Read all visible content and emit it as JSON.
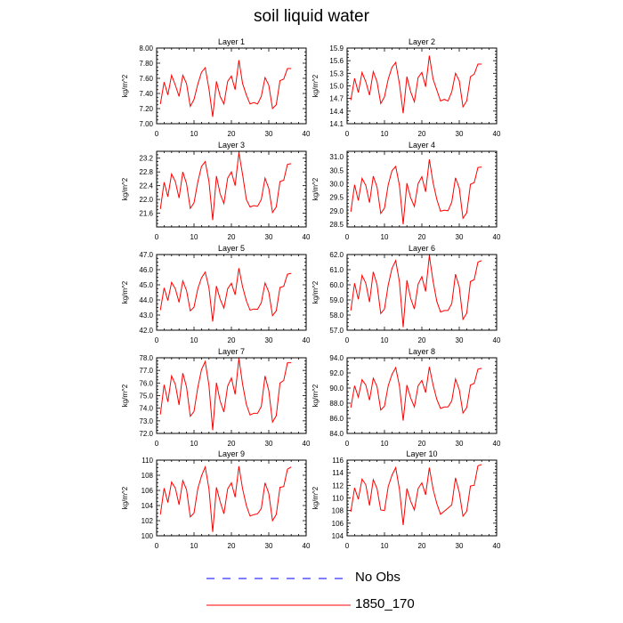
{
  "title": "soil liquid water",
  "ylabel": "kg/m^2",
  "series_color": "#ff0000",
  "obs_color": "#0000ff",
  "legend": {
    "no_obs": "No Obs",
    "model": "1850_170"
  },
  "chart_data": [
    {
      "type": "line",
      "title": "Layer 1",
      "ylabel": "kg/m^2",
      "xlim": [
        0,
        40
      ],
      "xticks": [
        0,
        10,
        20,
        30,
        40
      ],
      "ylim": [
        7.0,
        8.0
      ],
      "yticks": [
        7.0,
        7.2,
        7.4,
        7.6,
        7.8,
        8.0
      ],
      "yticklabels": [
        "7.00",
        "7.20",
        "7.40",
        "7.60",
        "7.80",
        "8.00"
      ],
      "series": [
        {
          "name": "1850_170",
          "x": [
            1,
            2,
            3,
            4,
            5,
            6,
            7,
            8,
            9,
            10,
            11,
            12,
            13,
            14,
            15,
            16,
            17,
            18,
            19,
            20,
            21,
            22,
            23,
            24,
            25,
            26,
            27,
            28,
            29,
            30,
            31,
            32,
            33,
            34,
            35,
            36
          ],
          "values": [
            7.26,
            7.55,
            7.38,
            7.64,
            7.51,
            7.36,
            7.64,
            7.53,
            7.23,
            7.32,
            7.52,
            7.68,
            7.74,
            7.46,
            7.09,
            7.56,
            7.36,
            7.26,
            7.56,
            7.63,
            7.45,
            7.84,
            7.53,
            7.38,
            7.26,
            7.28,
            7.26,
            7.36,
            7.61,
            7.51,
            7.2,
            7.25,
            7.57,
            7.59,
            7.73,
            7.73
          ]
        }
      ]
    },
    {
      "type": "line",
      "title": "Layer 2",
      "ylabel": "kg/m^2",
      "xlim": [
        0,
        40
      ],
      "xticks": [
        0,
        10,
        20,
        30,
        40
      ],
      "ylim": [
        14.1,
        15.9
      ],
      "yticks": [
        14.1,
        14.4,
        14.7,
        15.0,
        15.3,
        15.6,
        15.9
      ],
      "yticklabels": [
        "14.1",
        "14.4",
        "14.7",
        "15.0",
        "15.3",
        "15.6",
        "15.9"
      ],
      "series": [
        {
          "name": "1850_170",
          "x": [
            1,
            2,
            3,
            4,
            5,
            6,
            7,
            8,
            9,
            10,
            11,
            12,
            13,
            14,
            15,
            16,
            17,
            18,
            19,
            20,
            21,
            22,
            23,
            24,
            25,
            26,
            27,
            28,
            29,
            30,
            31,
            32,
            33,
            34,
            35,
            36
          ],
          "values": [
            14.66,
            15.18,
            14.84,
            15.32,
            15.1,
            14.78,
            15.34,
            15.1,
            14.58,
            14.74,
            15.16,
            15.44,
            15.56,
            15.05,
            14.35,
            15.22,
            14.86,
            14.62,
            15.2,
            15.32,
            14.98,
            15.72,
            15.16,
            14.9,
            14.64,
            14.68,
            14.64,
            14.86,
            15.3,
            15.12,
            14.5,
            14.64,
            15.22,
            15.28,
            15.52,
            15.52
          ]
        }
      ]
    },
    {
      "type": "line",
      "title": "Layer 3",
      "ylabel": "kg/m^2",
      "xlim": [
        0,
        40
      ],
      "xticks": [
        0,
        10,
        20,
        30,
        40
      ],
      "ylim": [
        21.2,
        23.4
      ],
      "yticks": [
        21.6,
        22.0,
        22.4,
        22.8,
        23.2
      ],
      "yticklabels": [
        "21.6",
        "22.0",
        "22.4",
        "22.8",
        "23.2"
      ],
      "series": [
        {
          "name": "1850_170",
          "x": [
            1,
            2,
            3,
            4,
            5,
            6,
            7,
            8,
            9,
            10,
            11,
            12,
            13,
            14,
            15,
            16,
            17,
            18,
            19,
            20,
            21,
            22,
            23,
            24,
            25,
            26,
            27,
            28,
            29,
            30,
            31,
            32,
            33,
            34,
            35,
            36
          ],
          "values": [
            21.72,
            22.5,
            22.08,
            22.74,
            22.52,
            22.04,
            22.8,
            22.46,
            21.74,
            21.9,
            22.5,
            22.96,
            23.1,
            22.52,
            21.4,
            22.68,
            22.16,
            21.88,
            22.62,
            22.8,
            22.4,
            23.36,
            22.72,
            22.0,
            21.78,
            21.82,
            21.8,
            22.0,
            22.62,
            22.32,
            21.62,
            21.78,
            22.52,
            22.56,
            23.02,
            23.04
          ]
        }
      ]
    },
    {
      "type": "line",
      "title": "Layer 4",
      "ylabel": "kg/m^2",
      "xlim": [
        0,
        40
      ],
      "xticks": [
        0,
        10,
        20,
        30,
        40
      ],
      "ylim": [
        28.4,
        31.2
      ],
      "yticks": [
        28.5,
        29.0,
        29.5,
        30.0,
        30.5,
        31.0
      ],
      "yticklabels": [
        "28.5",
        "29.0",
        "29.5",
        "30.0",
        "30.5",
        "31.0"
      ],
      "series": [
        {
          "name": "1850_170",
          "x": [
            1,
            2,
            3,
            4,
            5,
            6,
            7,
            8,
            9,
            10,
            11,
            12,
            13,
            14,
            15,
            16,
            17,
            18,
            19,
            20,
            21,
            22,
            23,
            24,
            25,
            26,
            27,
            28,
            29,
            30,
            31,
            32,
            33,
            34,
            35,
            36
          ],
          "values": [
            28.96,
            29.96,
            29.38,
            30.2,
            29.94,
            29.3,
            30.28,
            29.88,
            28.9,
            29.1,
            29.96,
            30.48,
            30.64,
            29.94,
            28.5,
            30.02,
            29.48,
            29.16,
            30.0,
            30.26,
            29.7,
            30.9,
            30.04,
            29.42,
            28.98,
            29.02,
            29.0,
            29.32,
            30.22,
            29.84,
            28.72,
            28.92,
            29.98,
            30.04,
            30.6,
            30.62
          ]
        }
      ]
    },
    {
      "type": "line",
      "title": "Layer 5",
      "ylabel": "kg/m^2",
      "xlim": [
        0,
        40
      ],
      "xticks": [
        0,
        10,
        20,
        30,
        40
      ],
      "ylim": [
        42.0,
        47.0
      ],
      "yticks": [
        42.0,
        43.0,
        44.0,
        45.0,
        46.0,
        47.0
      ],
      "yticklabels": [
        "42.0",
        "43.0",
        "44.0",
        "45.0",
        "46.0",
        "47.0"
      ],
      "series": [
        {
          "name": "1850_170",
          "x": [
            1,
            2,
            3,
            4,
            5,
            6,
            7,
            8,
            9,
            10,
            11,
            12,
            13,
            14,
            15,
            16,
            17,
            18,
            19,
            20,
            21,
            22,
            23,
            24,
            25,
            26,
            27,
            28,
            29,
            30,
            31,
            32,
            33,
            34,
            35,
            36
          ],
          "values": [
            43.32,
            44.8,
            43.96,
            45.16,
            44.74,
            43.84,
            45.26,
            44.62,
            43.28,
            43.52,
            44.72,
            45.46,
            45.84,
            44.8,
            42.58,
            44.92,
            44.04,
            43.46,
            44.74,
            45.1,
            44.34,
            46.1,
            44.86,
            43.94,
            43.32,
            43.4,
            43.38,
            43.82,
            45.12,
            44.52,
            42.96,
            43.28,
            44.82,
            44.9,
            45.7,
            45.76
          ]
        }
      ]
    },
    {
      "type": "line",
      "title": "Layer 6",
      "ylabel": "kg/m^2",
      "xlim": [
        0,
        40
      ],
      "xticks": [
        0,
        10,
        20,
        30,
        40
      ],
      "ylim": [
        57.0,
        62.0
      ],
      "yticks": [
        57.0,
        58.0,
        59.0,
        60.0,
        61.0,
        62.0
      ],
      "yticklabels": [
        "57.0",
        "58.0",
        "59.0",
        "60.0",
        "61.0",
        "62.0"
      ],
      "series": [
        {
          "name": "1850_170",
          "x": [
            1,
            2,
            3,
            4,
            5,
            6,
            7,
            8,
            9,
            10,
            11,
            12,
            13,
            14,
            15,
            16,
            17,
            18,
            19,
            20,
            21,
            22,
            23,
            24,
            25,
            26,
            27,
            28,
            29,
            30,
            31,
            32,
            33,
            34,
            35,
            36
          ],
          "values": [
            58.3,
            60.1,
            59.04,
            60.62,
            60.1,
            58.86,
            60.86,
            60.02,
            58.1,
            58.4,
            59.98,
            61.08,
            61.6,
            60.2,
            57.2,
            60.3,
            59.1,
            58.4,
            60.04,
            60.54,
            59.56,
            61.92,
            60.24,
            58.9,
            58.2,
            58.3,
            58.3,
            58.76,
            60.7,
            59.86,
            57.72,
            58.12,
            60.22,
            60.34,
            61.5,
            61.6
          ]
        }
      ]
    },
    {
      "type": "line",
      "title": "Layer 7",
      "ylabel": "kg/m^2",
      "xlim": [
        0,
        40
      ],
      "xticks": [
        0,
        10,
        20,
        30,
        40
      ],
      "ylim": [
        72.0,
        78.0
      ],
      "yticks": [
        72.0,
        73.0,
        74.0,
        75.0,
        76.0,
        77.0,
        78.0
      ],
      "yticklabels": [
        "72.0",
        "73.0",
        "74.0",
        "75.0",
        "76.0",
        "77.0",
        "78.0"
      ],
      "series": [
        {
          "name": "1850_170",
          "x": [
            1,
            2,
            3,
            4,
            5,
            6,
            7,
            8,
            9,
            10,
            11,
            12,
            13,
            14,
            15,
            16,
            17,
            18,
            19,
            20,
            21,
            22,
            23,
            24,
            25,
            26,
            27,
            28,
            29,
            30,
            31,
            32,
            33,
            34,
            35,
            36
          ],
          "values": [
            73.5,
            75.86,
            74.5,
            76.56,
            75.9,
            74.26,
            76.78,
            75.68,
            73.36,
            73.74,
            75.62,
            77.06,
            77.7,
            75.8,
            72.26,
            76.02,
            74.56,
            73.7,
            75.76,
            76.4,
            75.1,
            77.94,
            75.9,
            74.3,
            73.46,
            73.6,
            73.6,
            74.14,
            76.56,
            75.4,
            72.9,
            73.4,
            76.0,
            76.2,
            77.6,
            77.6
          ]
        }
      ]
    },
    {
      "type": "line",
      "title": "Layer 8",
      "ylabel": "kg/m^2",
      "xlim": [
        0,
        40
      ],
      "xticks": [
        0,
        10,
        20,
        30,
        40
      ],
      "ylim": [
        84.0,
        94.0
      ],
      "yticks": [
        84.0,
        86.0,
        88.0,
        90.0,
        92.0,
        94.0
      ],
      "yticklabels": [
        "84.0",
        "86.0",
        "88.0",
        "90.0",
        "92.0",
        "94.0"
      ],
      "series": [
        {
          "name": "1850_170",
          "x": [
            1,
            2,
            3,
            4,
            5,
            6,
            7,
            8,
            9,
            10,
            11,
            12,
            13,
            14,
            15,
            16,
            17,
            18,
            19,
            20,
            21,
            22,
            23,
            24,
            25,
            26,
            27,
            28,
            29,
            30,
            31,
            32,
            33,
            34,
            35,
            36
          ],
          "values": [
            87.4,
            90.3,
            88.8,
            91.1,
            90.4,
            88.4,
            91.3,
            90.2,
            87.1,
            87.6,
            90.3,
            91.8,
            92.7,
            90.3,
            85.7,
            90.4,
            88.7,
            87.5,
            90.3,
            91.0,
            89.4,
            92.8,
            90.4,
            88.5,
            87.3,
            87.5,
            87.5,
            88.3,
            91.2,
            89.8,
            86.7,
            87.4,
            90.4,
            90.6,
            92.5,
            92.6
          ]
        }
      ]
    },
    {
      "type": "line",
      "title": "Layer 9",
      "ylabel": "kg/m^2",
      "xlim": [
        0,
        40
      ],
      "xticks": [
        0,
        10,
        20,
        30,
        40
      ],
      "ylim": [
        100,
        110
      ],
      "yticks": [
        100,
        102,
        104,
        106,
        108,
        110
      ],
      "yticklabels": [
        "100",
        "102",
        "104",
        "106",
        "108",
        "110"
      ],
      "series": [
        {
          "name": "1850_170",
          "x": [
            1,
            2,
            3,
            4,
            5,
            6,
            7,
            8,
            9,
            10,
            11,
            12,
            13,
            14,
            15,
            16,
            17,
            18,
            19,
            20,
            21,
            22,
            23,
            24,
            25,
            26,
            27,
            28,
            29,
            30,
            31,
            32,
            33,
            34,
            35,
            36
          ],
          "values": [
            102.8,
            106.3,
            104.4,
            107.1,
            106.3,
            104.1,
            107.3,
            106.1,
            102.5,
            103.0,
            106.2,
            107.9,
            109.1,
            106.2,
            100.5,
            106.4,
            104.5,
            102.9,
            106.2,
            107.0,
            105.1,
            109.2,
            106.2,
            104.0,
            102.6,
            102.8,
            102.9,
            103.6,
            107.0,
            105.6,
            102.0,
            102.8,
            106.4,
            106.5,
            108.8,
            109.1
          ]
        }
      ]
    },
    {
      "type": "line",
      "title": "Layer 10",
      "ylabel": "kg/m^2",
      "xlim": [
        0,
        40
      ],
      "xticks": [
        0,
        10,
        20,
        30,
        40
      ],
      "ylim": [
        104,
        116
      ],
      "yticks": [
        104,
        106,
        108,
        110,
        112,
        114,
        116
      ],
      "yticklabels": [
        "104",
        "106",
        "108",
        "110",
        "112",
        "114",
        "116"
      ],
      "series": [
        {
          "name": "1850_170",
          "x": [
            1,
            2,
            3,
            4,
            5,
            6,
            7,
            8,
            9,
            10,
            11,
            12,
            13,
            14,
            15,
            16,
            17,
            18,
            19,
            20,
            21,
            22,
            23,
            24,
            25,
            26,
            27,
            28,
            29,
            30,
            31,
            32,
            33,
            34,
            35,
            36
          ],
          "values": [
            107.8,
            111.6,
            109.8,
            113.0,
            112.1,
            108.8,
            112.9,
            111.5,
            108.1,
            108.0,
            111.8,
            113.6,
            114.8,
            111.4,
            105.7,
            111.5,
            109.5,
            108.1,
            111.5,
            112.4,
            110.5,
            114.8,
            111.4,
            109.1,
            107.4,
            107.9,
            108.4,
            108.9,
            113.2,
            110.9,
            107.1,
            107.9,
            111.9,
            112.0,
            115.1,
            115.3
          ]
        }
      ]
    }
  ]
}
